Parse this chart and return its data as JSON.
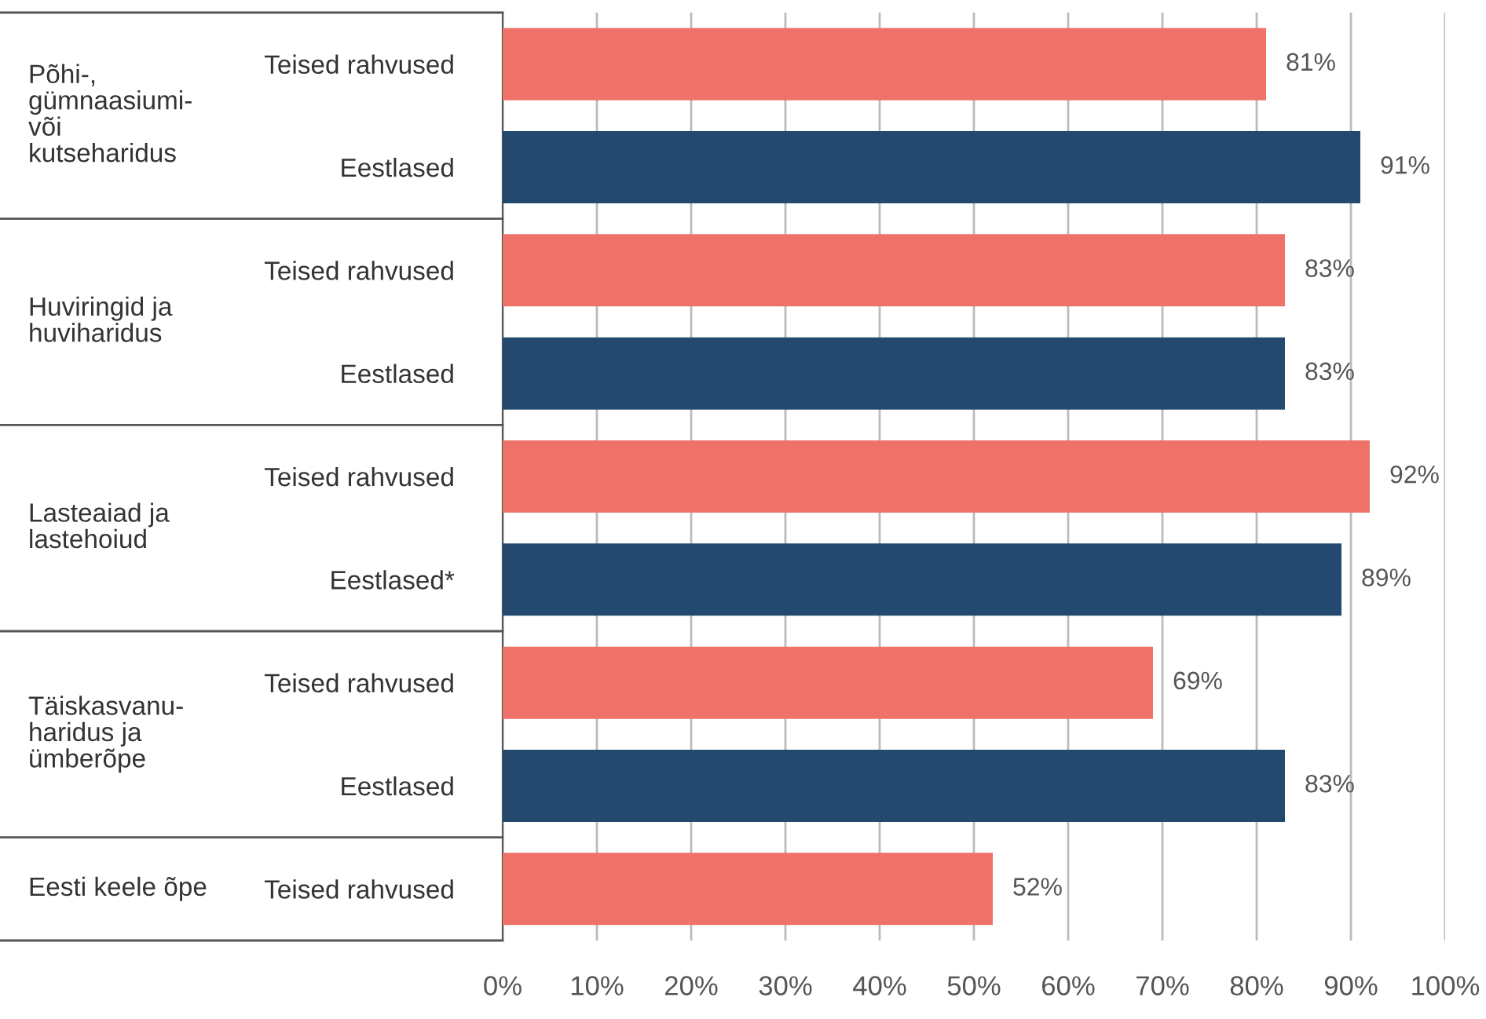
{
  "chart_data": {
    "type": "bar",
    "orientation": "horizontal",
    "categories": [
      "Teised rahvused",
      "Eestlased",
      "Teised rahvused",
      "Eestlased",
      "Teised rahvused",
      "Eestlased*",
      "Teised rahvused",
      "Eestlased",
      "Teised rahvused"
    ],
    "values": [
      81,
      91,
      83,
      83,
      92,
      89,
      69,
      83,
      52
    ],
    "colors": [
      "#ee7268",
      "#234a6e",
      "#ee7268",
      "#234a6e",
      "#ee7268",
      "#234a6e",
      "#ee7268",
      "#234a6e",
      "#ee7268"
    ],
    "value_labels": [
      "81%",
      "91%",
      "83%",
      "83%",
      "92%",
      "89%",
      "69%",
      "83%",
      "52%"
    ],
    "annotations": [
      "Põhi-,\ngümnaasiumi-\nvõi\nkutseharidus",
      "Huviringid ja\nhuviharidus",
      "Lasteaiad ja\nlastehoiud",
      "Täiskasvanu-\nharidus ja\nümberõpe",
      "Eesti keele õpe"
    ],
    "xlim": [
      0,
      100
    ],
    "xticks": [
      {
        "value": 0,
        "label": "0%"
      },
      {
        "value": 10,
        "label": "10%"
      },
      {
        "value": 20,
        "label": "20%"
      },
      {
        "value": 30,
        "label": "30%"
      },
      {
        "value": 40,
        "label": "40%"
      },
      {
        "value": 50,
        "label": "50%"
      },
      {
        "value": 60,
        "label": "60%"
      },
      {
        "value": 70,
        "label": "70%"
      },
      {
        "value": 80,
        "label": "80%"
      },
      {
        "value": 90,
        "label": "90%"
      },
      {
        "value": 100,
        "label": "100%"
      }
    ],
    "grid": "x"
  }
}
